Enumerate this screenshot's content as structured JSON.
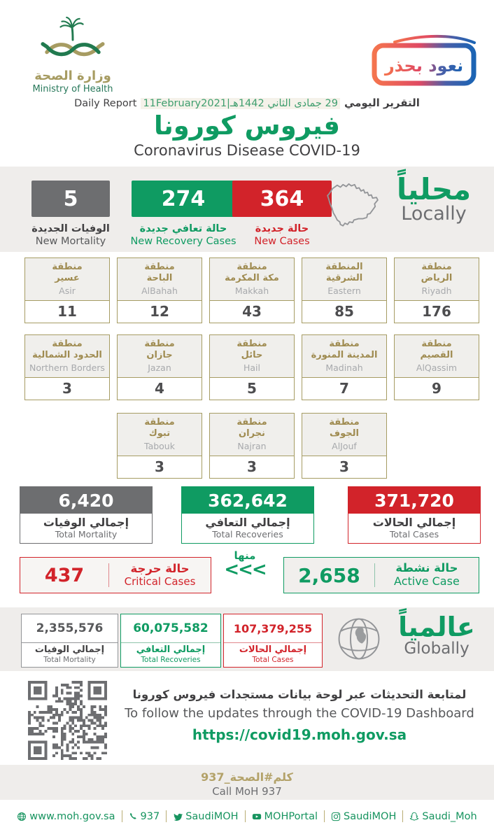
{
  "header": {
    "ministry_ar": "وزارة الصحة",
    "ministry_en": "Ministry of Health",
    "badge_text": "نعود بحذر",
    "report_label_ar": "التقرير اليومي",
    "date_combined": "29 جمادى الثاني 1442هـ|11February2021",
    "report_label_en": "Daily Report",
    "title_ar": "فيروس كورونا",
    "title_en": "Coronavirus Disease COVID-19"
  },
  "locally": {
    "heading_ar": "محلياً",
    "heading_en": "Locally",
    "stats": [
      {
        "value": "5",
        "label_ar": "الوفيات الجديدة",
        "label_en": "New Mortality",
        "color": "#6d6e70"
      },
      {
        "value": "274",
        "label_ar": "حالة تعافي جديدة",
        "label_en": "New Recovery Cases",
        "color": "#0f9b62"
      },
      {
        "value": "364",
        "label_ar": "حالة جديدة",
        "label_en": "New Cases",
        "color": "#d2232a"
      }
    ]
  },
  "regions": {
    "row1": [
      {
        "ar1": "منطقة",
        "ar2": "عسير",
        "en": "Asir",
        "value": "11"
      },
      {
        "ar1": "منطقة",
        "ar2": "الباحة",
        "en": "AlBahah",
        "value": "12"
      },
      {
        "ar1": "منطقة",
        "ar2": "مكة المكرمة",
        "en": "Makkah",
        "value": "43"
      },
      {
        "ar1": "المنطقة",
        "ar2": "الشرقية",
        "en": "Eastern",
        "value": "85"
      },
      {
        "ar1": "منطقة",
        "ar2": "الرياض",
        "en": "Riyadh",
        "value": "176"
      }
    ],
    "row2": [
      {
        "ar1": "منطقة",
        "ar2": "الحدود الشمالية",
        "en": "Northern Borders",
        "value": "3"
      },
      {
        "ar1": "منطقة",
        "ar2": "جازان",
        "en": "Jazan",
        "value": "4"
      },
      {
        "ar1": "منطقة",
        "ar2": "حائل",
        "en": "Hail",
        "value": "5"
      },
      {
        "ar1": "منطقة",
        "ar2": "المدينة المنورة",
        "en": "Madinah",
        "value": "7"
      },
      {
        "ar1": "منطقة",
        "ar2": "القصيم",
        "en": "AlQassim",
        "value": "9"
      }
    ],
    "row3": [
      {
        "ar1": "منطقة",
        "ar2": "تبوك",
        "en": "Tabouk",
        "value": "3"
      },
      {
        "ar1": "منطقة",
        "ar2": "نجران",
        "en": "Najran",
        "value": "3"
      },
      {
        "ar1": "منطقة",
        "ar2": "الجوف",
        "en": "AlJouf",
        "value": "3"
      }
    ]
  },
  "totals": [
    {
      "value": "6,420",
      "label_ar": "إجمالي الوفيات",
      "label_en": "Total Mortality",
      "color": "#6d6e70"
    },
    {
      "value": "362,642",
      "label_ar": "إجمالي التعافي",
      "label_en": "Total Recoveries",
      "color": "#0f9b62"
    },
    {
      "value": "371,720",
      "label_ar": "إجمالي الحالات",
      "label_en": "Total Cases",
      "color": "#d2232a"
    }
  ],
  "critical": {
    "value": "437",
    "label_ar": "حالة حرجة",
    "label_en": "Critical Cases"
  },
  "minha": {
    "label_ar": "منها",
    "arrows": "<<<"
  },
  "active": {
    "value": "2,658",
    "label_ar": "حالة نشطة",
    "label_en": "Active Case"
  },
  "globally": {
    "heading_ar": "عالمياً",
    "heading_en": "Globally",
    "stats": [
      {
        "value": "2,355,576",
        "label_ar": "إجمالي الوفيات",
        "label_en": "Total Mortality"
      },
      {
        "value": "60,075,582",
        "label_ar": "إجمالي التعافي",
        "label_en": "Total Recoveries"
      },
      {
        "value": "107,379,255",
        "label_ar": "إجمالي الحالات",
        "label_en": "Total Cases"
      }
    ]
  },
  "dashboard": {
    "line_ar": "لمتابعة التحديثات عبر لوحة بيانات مستجدات فيروس كورونا",
    "line_en": "To follow the updates through the COVID-19 Dashboard",
    "url": "https://covid19.moh.gov.sa"
  },
  "call": {
    "hashtag_ar": "كلم#الصحة_937",
    "label_en": "Call MoH 937"
  },
  "footer": {
    "items": [
      {
        "icon": "globe-icon",
        "label": "www.moh.gov.sa"
      },
      {
        "icon": "phone-icon",
        "label": "937"
      },
      {
        "icon": "twitter-icon",
        "label": "SaudiMOH"
      },
      {
        "icon": "youtube-icon",
        "label": "MOHPortal"
      },
      {
        "icon": "instagram-icon",
        "label": "SaudiMOH"
      },
      {
        "icon": "snapchat-icon",
        "label": "Saudi_Moh"
      }
    ]
  },
  "colors": {
    "green": "#0f9b62",
    "red": "#d2232a",
    "gray": "#6d6e70",
    "gold": "#a69c63",
    "band": "#efedeb"
  }
}
